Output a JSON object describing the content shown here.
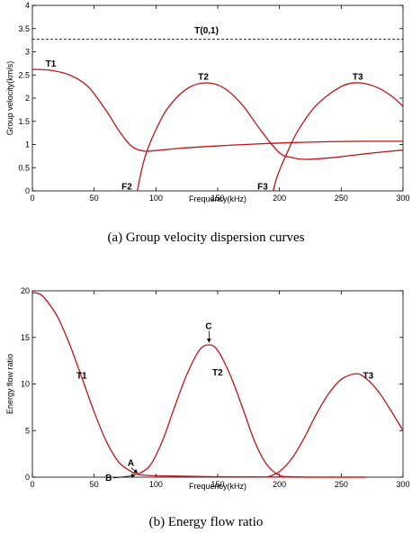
{
  "colors": {
    "curve": "#c0151a",
    "reference_line": "#1a1a8c",
    "axis": "#000000",
    "background": "#ffffff"
  },
  "chart_data": [
    {
      "type": "line",
      "caption": "(a)  Group velocity dispersion curves",
      "xlabel": "Frequency(kHz)",
      "ylabel": "Group velocity(km/s)",
      "xlim": [
        0,
        300
      ],
      "ylim": [
        0,
        4
      ],
      "xticks": [
        "0",
        "50",
        "100",
        "150",
        "200",
        "250",
        "300"
      ],
      "yticks": [
        "0",
        "0.5",
        "1",
        "1.5",
        "2",
        "2.5",
        "3",
        "3.5",
        "4"
      ],
      "grid": false,
      "series": [
        {
          "name": "T(0,1)",
          "style": "dashed",
          "x": [
            0,
            300
          ],
          "y": [
            3.27,
            3.27
          ]
        },
        {
          "name": "T1",
          "x": [
            0,
            15,
            30,
            45,
            60,
            70,
            80,
            90,
            100,
            120,
            150,
            180,
            210,
            240,
            270,
            300
          ],
          "y": [
            2.62,
            2.6,
            2.5,
            2.25,
            1.72,
            1.3,
            0.97,
            0.86,
            0.87,
            0.92,
            0.97,
            1.01,
            1.04,
            1.06,
            1.07,
            1.07
          ]
        },
        {
          "name": "T2",
          "x": [
            85,
            88,
            92,
            100,
            110,
            125,
            140,
            155,
            170,
            185,
            200,
            210,
            220,
            240,
            260,
            280,
            300
          ],
          "y": [
            0.0,
            0.4,
            0.8,
            1.32,
            1.8,
            2.2,
            2.33,
            2.22,
            1.85,
            1.3,
            0.82,
            0.72,
            0.68,
            0.71,
            0.77,
            0.83,
            0.88
          ]
        },
        {
          "name": "T3",
          "x": [
            195,
            198,
            205,
            215,
            230,
            250,
            265,
            280,
            292,
            300
          ],
          "y": [
            0.0,
            0.3,
            0.75,
            1.3,
            1.85,
            2.25,
            2.33,
            2.22,
            2.02,
            1.82
          ]
        }
      ],
      "annotations": [
        {
          "text": "T(0,1)",
          "x": 140,
          "y": 3.4
        },
        {
          "text": "T1",
          "x": 15,
          "y": 2.68
        },
        {
          "text": "T2",
          "x": 140,
          "y": 2.4
        },
        {
          "text": "T3",
          "x": 265,
          "y": 2.4
        },
        {
          "text": "F2",
          "x": 78,
          "y": 0.03
        },
        {
          "text": "F3",
          "x": 188,
          "y": 0.03
        }
      ]
    },
    {
      "type": "line",
      "caption": "(b)  Energy flow ratio",
      "xlabel": "Frequency(kHz)",
      "ylabel": "Energy flow ratio",
      "xlim": [
        0,
        300
      ],
      "ylim": [
        0,
        20
      ],
      "xticks": [
        "0",
        "50",
        "100",
        "150",
        "200",
        "250",
        "300"
      ],
      "yticks": [
        "0",
        "5",
        "10",
        "15",
        "20"
      ],
      "grid": false,
      "series": [
        {
          "name": "T1",
          "x": [
            0,
            5,
            10,
            20,
            30,
            40,
            50,
            60,
            70,
            80,
            85,
            100,
            150,
            200,
            230,
            270
          ],
          "y": [
            19.8,
            19.7,
            19.2,
            17.3,
            14.3,
            10.7,
            7.0,
            3.8,
            1.6,
            0.6,
            0.3,
            0.15,
            0.05,
            0.02,
            0.0,
            0.0
          ]
        },
        {
          "name": "T2",
          "x": [
            85,
            95,
            105,
            115,
            125,
            135,
            143,
            150,
            160,
            170,
            180,
            190,
            200,
            210,
            230,
            270
          ],
          "y": [
            0.3,
            1.2,
            3.8,
            7.5,
            11.0,
            13.6,
            14.2,
            13.6,
            11.0,
            7.5,
            3.8,
            1.3,
            0.2,
            0.05,
            0.0,
            0.0
          ]
        },
        {
          "name": "T3",
          "x": [
            190,
            200,
            210,
            220,
            230,
            240,
            250,
            262,
            270,
            280,
            290,
            300
          ],
          "y": [
            0.0,
            0.6,
            2.0,
            4.2,
            6.8,
            9.0,
            10.5,
            11.1,
            10.6,
            9.2,
            7.2,
            5.0
          ]
        }
      ],
      "annotations": [
        {
          "text": "T1",
          "x": 40,
          "y": 10.6
        },
        {
          "text": "T2",
          "x": 150,
          "y": 10.9
        },
        {
          "text": "T3",
          "x": 272,
          "y": 10.6
        },
        {
          "text": "C",
          "x": 143,
          "y": 15.9
        },
        {
          "text": "A",
          "x": 80,
          "y": 1.2
        },
        {
          "text": "B",
          "x": 62,
          "y": 0.0
        }
      ]
    }
  ]
}
